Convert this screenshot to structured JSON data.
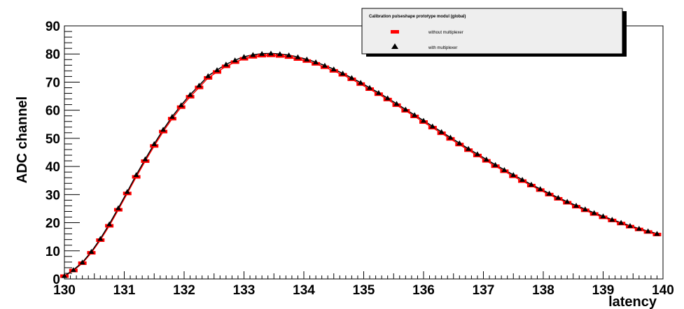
{
  "chart_data": {
    "type": "scatter",
    "title": "",
    "xlabel": "latency",
    "ylabel": "ADC channel",
    "xlim": [
      130,
      140
    ],
    "ylim": [
      0,
      90
    ],
    "x_ticks": [
      130,
      131,
      132,
      133,
      134,
      135,
      136,
      137,
      138,
      139,
      140
    ],
    "y_ticks": [
      0,
      10,
      20,
      30,
      40,
      50,
      60,
      70,
      80,
      90
    ],
    "grid": false,
    "legend_placement": "top-right",
    "legend": {
      "title": "Calibration pulseshape prototype modul  (global)",
      "entries": [
        {
          "label": "without multiplexer",
          "marker": "square",
          "color": "#ff0000"
        },
        {
          "label": "with multiplexer",
          "marker": "triangle",
          "color": "#000000"
        }
      ]
    },
    "series": [
      {
        "name": "without multiplexer",
        "color": "#ff0000",
        "marker": "square",
        "x": [
          130.0,
          130.15,
          130.3,
          130.45,
          130.6,
          130.75,
          130.9,
          131.05,
          131.2,
          131.35,
          131.5,
          131.65,
          131.8,
          131.95,
          132.1,
          132.25,
          132.4,
          132.55,
          132.7,
          132.85,
          133.0,
          133.15,
          133.3,
          133.45,
          133.6,
          133.75,
          133.9,
          134.05,
          134.2,
          134.35,
          134.5,
          134.65,
          134.8,
          134.95,
          135.1,
          135.25,
          135.4,
          135.55,
          135.7,
          135.85,
          136.0,
          136.15,
          136.3,
          136.45,
          136.6,
          136.75,
          136.9,
          137.05,
          137.2,
          137.35,
          137.5,
          137.65,
          137.8,
          137.95,
          138.1,
          138.25,
          138.4,
          138.55,
          138.7,
          138.85,
          139.0,
          139.15,
          139.3,
          139.45,
          139.6,
          139.75,
          139.9
        ],
        "values": [
          1.0,
          3.0,
          5.6,
          9.3,
          13.8,
          18.9,
          24.6,
          30.4,
          36.3,
          41.9,
          47.3,
          52.4,
          57.0,
          61.1,
          64.8,
          68.1,
          71.5,
          73.6,
          75.6,
          77.1,
          78.3,
          79.0,
          79.4,
          79.5,
          79.3,
          78.9,
          78.2,
          77.5,
          76.5,
          75.3,
          74.0,
          72.6,
          71.0,
          69.3,
          67.5,
          65.7,
          63.8,
          61.8,
          59.8,
          57.8,
          55.8,
          53.8,
          51.8,
          49.8,
          47.8,
          45.8,
          43.9,
          42.0,
          40.1,
          38.3,
          36.5,
          34.8,
          33.2,
          31.6,
          30.0,
          28.5,
          27.1,
          25.7,
          24.4,
          23.1,
          21.9,
          20.8,
          19.7,
          18.6,
          17.6,
          16.7,
          15.8
        ]
      },
      {
        "name": "with multiplexer",
        "color": "#000000",
        "marker": "triangle",
        "x": [
          130.0,
          130.15,
          130.3,
          130.45,
          130.6,
          130.75,
          130.9,
          131.05,
          131.2,
          131.35,
          131.5,
          131.65,
          131.8,
          131.95,
          132.1,
          132.25,
          132.4,
          132.55,
          132.7,
          132.85,
          133.0,
          133.15,
          133.3,
          133.45,
          133.6,
          133.75,
          133.9,
          134.05,
          134.2,
          134.35,
          134.5,
          134.65,
          134.8,
          134.95,
          135.1,
          135.25,
          135.4,
          135.55,
          135.7,
          135.85,
          136.0,
          136.15,
          136.3,
          136.45,
          136.6,
          136.75,
          136.9,
          137.05,
          137.2,
          137.35,
          137.5,
          137.65,
          137.8,
          137.95,
          138.1,
          138.25,
          138.4,
          138.55,
          138.7,
          138.85,
          139.0,
          139.15,
          139.3,
          139.45,
          139.6,
          139.75,
          139.9
        ],
        "values": [
          1.1,
          3.2,
          5.9,
          9.7,
          14.3,
          19.5,
          25.2,
          31.0,
          37.0,
          42.6,
          48.0,
          53.1,
          57.7,
          61.8,
          65.5,
          68.8,
          72.2,
          74.3,
          76.3,
          77.8,
          79.0,
          79.7,
          80.1,
          80.2,
          80.0,
          79.6,
          78.9,
          78.1,
          77.1,
          75.9,
          74.6,
          73.1,
          71.5,
          69.8,
          68.0,
          66.2,
          64.3,
          62.3,
          60.3,
          58.3,
          56.3,
          54.3,
          52.3,
          50.3,
          48.3,
          46.3,
          44.4,
          42.5,
          40.6,
          38.8,
          37.0,
          35.3,
          33.6,
          32.0,
          30.4,
          28.9,
          27.5,
          26.1,
          24.8,
          23.5,
          22.3,
          21.1,
          20.0,
          18.9,
          17.9,
          17.0,
          16.1
        ]
      }
    ]
  }
}
